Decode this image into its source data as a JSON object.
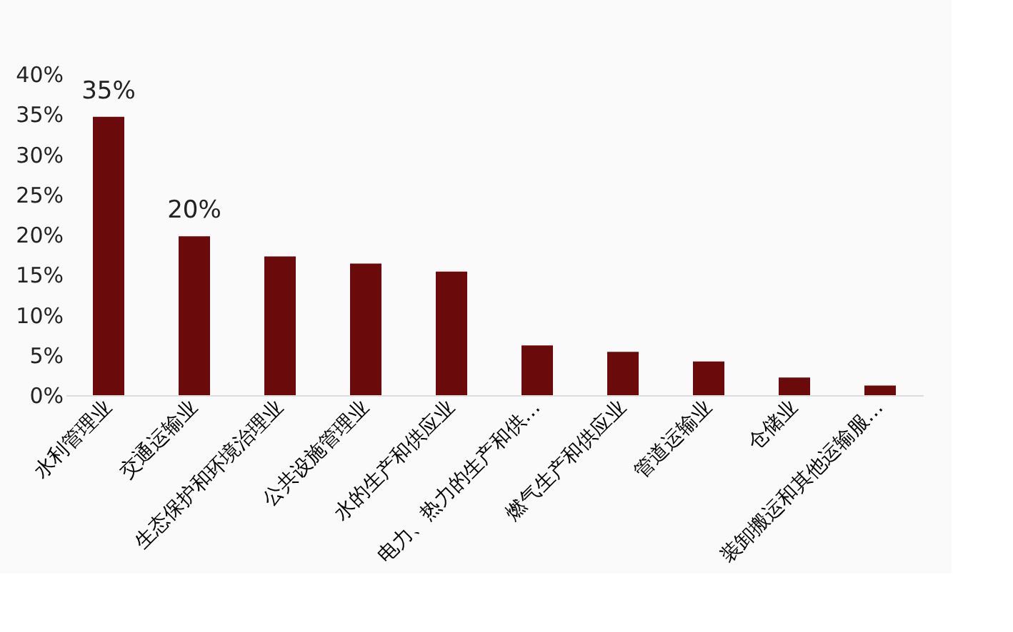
{
  "chart_data": {
    "type": "bar",
    "categories": [
      "水利管理业",
      "交通运输业",
      "生态保护和环境治理业",
      "公共设施管理业",
      "水的生产和供应业",
      "电力、热力的生产和供…",
      "燃气生产和供应业",
      "管道运输业",
      "仓储业",
      "装卸搬运和其他运输服…"
    ],
    "values": [
      34.7,
      19.8,
      17.3,
      16.4,
      15.4,
      6.2,
      5.4,
      4.2,
      2.2,
      1.2
    ],
    "value_labels": [
      "35%",
      "20%",
      null,
      null,
      null,
      null,
      null,
      null,
      null,
      null
    ],
    "color": "#6b0a0a",
    "ylim": [
      0,
      40
    ],
    "yticks": [
      {
        "value": 0,
        "label": "0%"
      },
      {
        "value": 5,
        "label": "5%"
      },
      {
        "value": 10,
        "label": "10%"
      },
      {
        "value": 15,
        "label": "15%"
      },
      {
        "value": 20,
        "label": "20%"
      },
      {
        "value": 25,
        "label": "25%"
      },
      {
        "value": 30,
        "label": "30%"
      },
      {
        "value": 35,
        "label": "35%"
      },
      {
        "value": 40,
        "label": "40%"
      }
    ],
    "grid": false
  }
}
